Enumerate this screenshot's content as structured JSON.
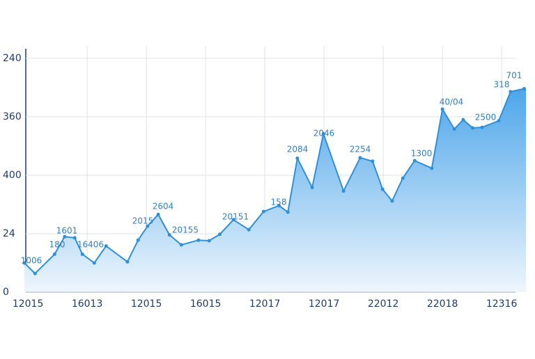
{
  "chart_data": {
    "type": "area",
    "x": [
      -0.06,
      0.12,
      0.45,
      0.62,
      0.79,
      0.92,
      1.12,
      1.32,
      1.68,
      1.86,
      2.02,
      2.2,
      2.39,
      2.59,
      2.88,
      3.06,
      3.24,
      3.47,
      3.73,
      3.98,
      4.24,
      4.39,
      4.55,
      4.8,
      4.99,
      5.33,
      5.61,
      5.82,
      5.99,
      6.15,
      6.33,
      6.53,
      6.82,
      7.0,
      7.2,
      7.35,
      7.51,
      7.67,
      7.95,
      8.15,
      8.38
    ],
    "values": [
      0.5,
      0.32,
      0.65,
      0.95,
      0.93,
      0.65,
      0.5,
      0.79,
      0.52,
      0.89,
      1.13,
      1.33,
      0.98,
      0.81,
      0.89,
      0.88,
      0.99,
      1.24,
      1.07,
      1.38,
      1.48,
      1.37,
      2.29,
      1.79,
      2.71,
      1.73,
      2.3,
      2.24,
      1.76,
      1.56,
      1.95,
      2.25,
      2.12,
      3.13,
      2.79,
      2.95,
      2.81,
      2.82,
      2.93,
      3.43,
      3.48
    ],
    "color": "#2f8fd8",
    "xlim": [
      -0.06,
      8.41
    ],
    "ylim": [
      0,
      4.2
    ],
    "xticks": [
      {
        "value": 0,
        "label": "12015"
      },
      {
        "value": 1,
        "label": "16013"
      },
      {
        "value": 2,
        "label": "12015"
      },
      {
        "value": 3,
        "label": "16015"
      },
      {
        "value": 4,
        "label": "12017"
      },
      {
        "value": 5,
        "label": "12017"
      },
      {
        "value": 6,
        "label": "22012"
      },
      {
        "value": 7,
        "label": "22018"
      },
      {
        "value": 8,
        "label": "12316"
      }
    ],
    "yticks": [
      {
        "value": 0,
        "label": "0"
      },
      {
        "value": 1,
        "label": "24"
      },
      {
        "value": 2,
        "label": "400"
      },
      {
        "value": 3,
        "label": "360"
      },
      {
        "value": 4,
        "label": "240"
      }
    ],
    "grid": true,
    "annotations": [
      "1006",
      "180",
      "1601",
      "16406",
      "2015",
      "2604",
      "20155",
      "20151",
      "158",
      "2084",
      "2046",
      "2254",
      "1300",
      "40/04",
      "2500",
      "318",
      "701"
    ]
  }
}
